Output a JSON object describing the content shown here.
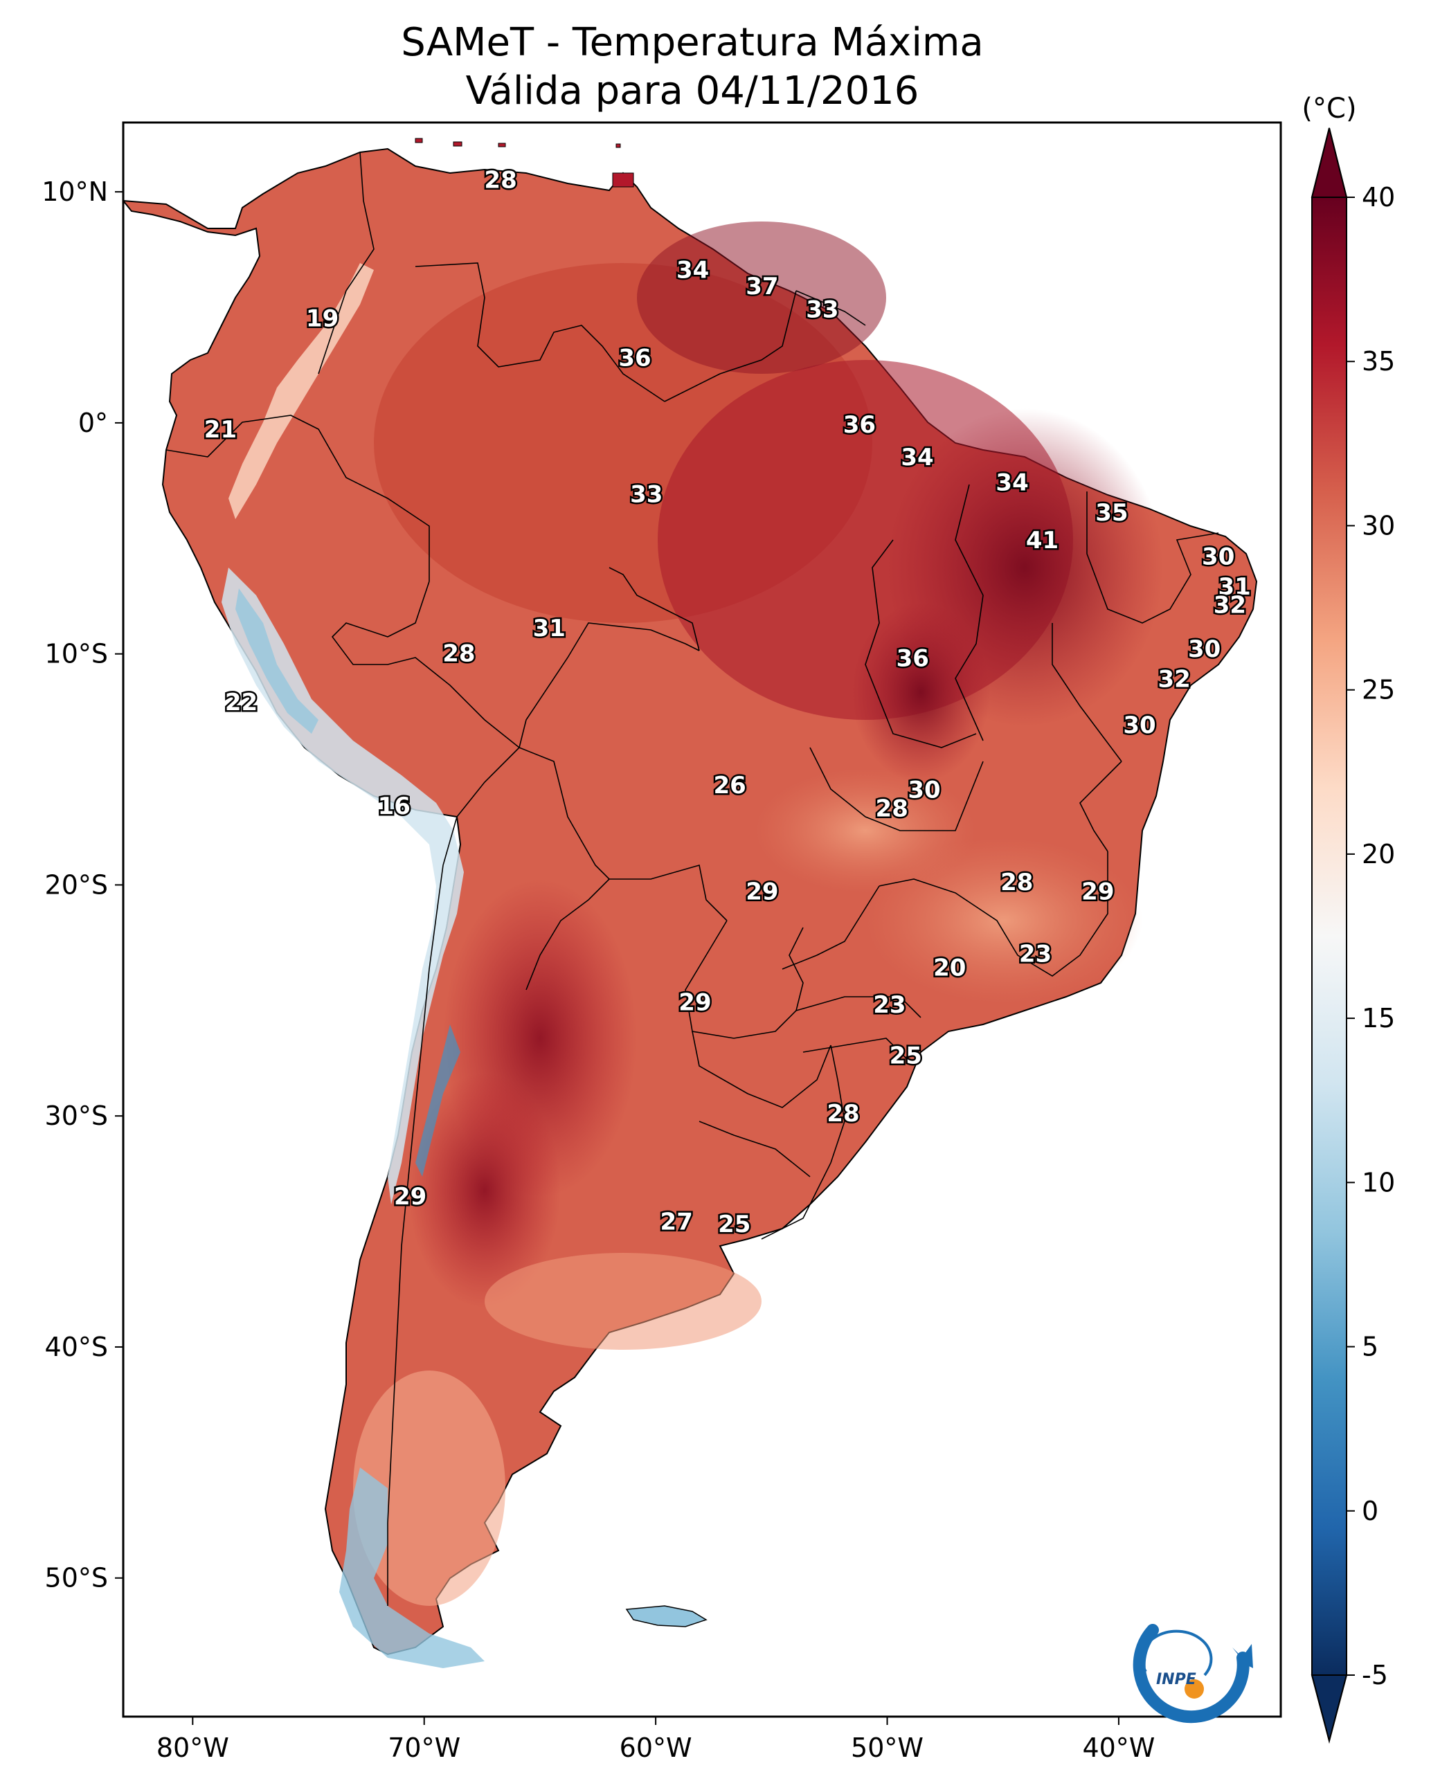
{
  "title": {
    "line1": "SAMeT - Temperatura Máxima",
    "line2": "Válida para 04/11/2016"
  },
  "colorbar": {
    "unit": "(°C)",
    "min": -5,
    "max": 40,
    "ticks": [
      "40",
      "35",
      "30",
      "25",
      "20",
      "15",
      "10",
      "5",
      "0",
      "-5"
    ],
    "tick_values": [
      40,
      35,
      30,
      25,
      20,
      15,
      10,
      5,
      0,
      -5
    ],
    "colors": [
      "#0b2c5e",
      "#2166ac",
      "#4393c3",
      "#92c5de",
      "#d1e5f0",
      "#f7f7f7",
      "#fddbc7",
      "#f4a582",
      "#d6604d",
      "#b2182b",
      "#67001f"
    ]
  },
  "axes": {
    "lon_labels": [
      "80°W",
      "70°W",
      "60°W",
      "50°W",
      "40°W"
    ],
    "lon_values": [
      -80,
      -70,
      -60,
      -50,
      -40
    ],
    "lat_labels": [
      "10°N",
      "0°",
      "10°S",
      "20°S",
      "30°S",
      "40°S",
      "50°S"
    ],
    "lat_values": [
      10,
      0,
      -10,
      -20,
      -30,
      -40,
      -50
    ],
    "lon_range": [
      -83,
      -33
    ],
    "lat_range": [
      13,
      -56
    ]
  },
  "labels": [
    {
      "text": "28",
      "lon": -66.7,
      "lat": 10.5
    },
    {
      "text": "19",
      "lon": -74.4,
      "lat": 4.5
    },
    {
      "text": "34",
      "lon": -58.4,
      "lat": 6.6
    },
    {
      "text": "37",
      "lon": -55.4,
      "lat": 5.9
    },
    {
      "text": "33",
      "lon": -52.8,
      "lat": 4.9
    },
    {
      "text": "36",
      "lon": -60.9,
      "lat": 2.8
    },
    {
      "text": "21",
      "lon": -78.8,
      "lat": -0.3
    },
    {
      "text": "36",
      "lon": -51.2,
      "lat": -0.1
    },
    {
      "text": "34",
      "lon": -48.7,
      "lat": -1.5
    },
    {
      "text": "34",
      "lon": -44.6,
      "lat": -2.6
    },
    {
      "text": "33",
      "lon": -60.4,
      "lat": -3.1
    },
    {
      "text": "35",
      "lon": -40.3,
      "lat": -3.9
    },
    {
      "text": "41",
      "lon": -43.3,
      "lat": -5.1
    },
    {
      "text": "30",
      "lon": -35.7,
      "lat": -5.8
    },
    {
      "text": "31",
      "lon": -35.0,
      "lat": -7.1
    },
    {
      "text": "32",
      "lon": -35.2,
      "lat": -7.9
    },
    {
      "text": "31",
      "lon": -64.6,
      "lat": -8.9
    },
    {
      "text": "28",
      "lon": -68.5,
      "lat": -10.0
    },
    {
      "text": "36",
      "lon": -48.9,
      "lat": -10.2
    },
    {
      "text": "30",
      "lon": -36.3,
      "lat": -9.8
    },
    {
      "text": "32",
      "lon": -37.6,
      "lat": -11.1
    },
    {
      "text": "22",
      "lon": -77.9,
      "lat": -12.1
    },
    {
      "text": "30",
      "lon": -39.1,
      "lat": -13.1
    },
    {
      "text": "26",
      "lon": -56.8,
      "lat": -15.7
    },
    {
      "text": "30",
      "lon": -48.4,
      "lat": -15.9
    },
    {
      "text": "28",
      "lon": -49.8,
      "lat": -16.7
    },
    {
      "text": "16",
      "lon": -71.3,
      "lat": -16.6
    },
    {
      "text": "28",
      "lon": -44.4,
      "lat": -19.9
    },
    {
      "text": "29",
      "lon": -55.4,
      "lat": -20.3
    },
    {
      "text": "29",
      "lon": -40.9,
      "lat": -20.3
    },
    {
      "text": "23",
      "lon": -43.6,
      "lat": -23.0
    },
    {
      "text": "20",
      "lon": -47.3,
      "lat": -23.6
    },
    {
      "text": "29",
      "lon": -58.3,
      "lat": -25.1
    },
    {
      "text": "23",
      "lon": -49.9,
      "lat": -25.2
    },
    {
      "text": "25",
      "lon": -49.2,
      "lat": -27.4
    },
    {
      "text": "28",
      "lon": -51.9,
      "lat": -29.9
    },
    {
      "text": "29",
      "lon": -70.6,
      "lat": -33.5
    },
    {
      "text": "27",
      "lon": -59.1,
      "lat": -34.6
    },
    {
      "text": "25",
      "lon": -56.6,
      "lat": -34.7
    }
  ],
  "logo": {
    "text": "INPE"
  }
}
